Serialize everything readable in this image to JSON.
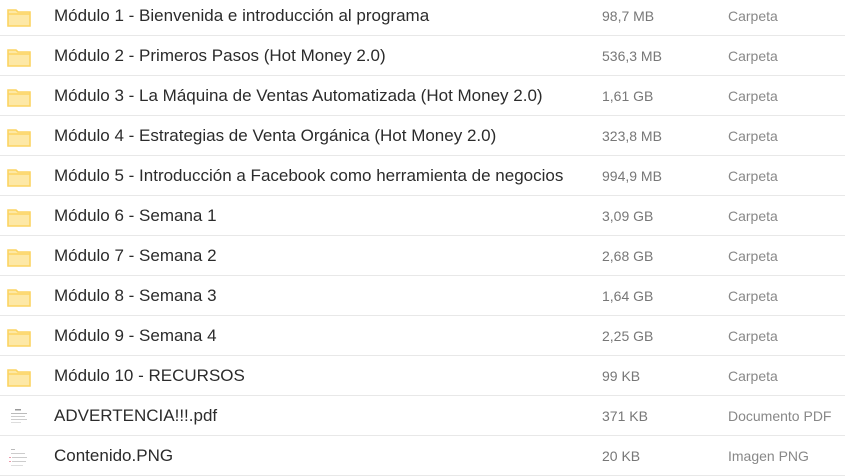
{
  "colors": {
    "folder": "#fcd462",
    "folder_fill": "#fde8a6"
  },
  "items": [
    {
      "name": "Módulo 1 - Bienvenida e introducción al programa",
      "size": "98,7 MB",
      "type": "Carpeta",
      "icon": "folder-icon"
    },
    {
      "name": "Módulo 2 - Primeros Pasos (Hot Money 2.0)",
      "size": "536,3 MB",
      "type": "Carpeta",
      "icon": "folder-icon"
    },
    {
      "name": "Módulo 3 - La Máquina de Ventas Automatizada (Hot Money 2.0)",
      "size": "1,61 GB",
      "type": "Carpeta",
      "icon": "folder-icon"
    },
    {
      "name": "Módulo 4 - Estrategias de Venta Orgánica (Hot Money 2.0)",
      "size": "323,8 MB",
      "type": "Carpeta",
      "icon": "folder-icon"
    },
    {
      "name": "Módulo 5 - Introducción a Facebook como herramienta de negocios",
      "size": "994,9 MB",
      "type": "Carpeta",
      "icon": "folder-icon"
    },
    {
      "name": "Módulo 6 - Semana 1",
      "size": "3,09 GB",
      "type": "Carpeta",
      "icon": "folder-icon"
    },
    {
      "name": "Módulo 7 - Semana 2",
      "size": "2,68 GB",
      "type": "Carpeta",
      "icon": "folder-icon"
    },
    {
      "name": "Módulo 8 - Semana 3",
      "size": "1,64 GB",
      "type": "Carpeta",
      "icon": "folder-icon"
    },
    {
      "name": "Módulo 9 - Semana 4",
      "size": "2,25 GB",
      "type": "Carpeta",
      "icon": "folder-icon"
    },
    {
      "name": "Módulo 10 - RECURSOS",
      "size": "99 KB",
      "type": "Carpeta",
      "icon": "folder-icon"
    },
    {
      "name": "ADVERTENCIA!!!.pdf",
      "size": "371 KB",
      "type": "Documento PDF",
      "icon": "document-thumbnail-icon"
    },
    {
      "name": "Contenido.PNG",
      "size": "20 KB",
      "type": "Imagen PNG",
      "icon": "image-thumbnail-icon"
    }
  ]
}
